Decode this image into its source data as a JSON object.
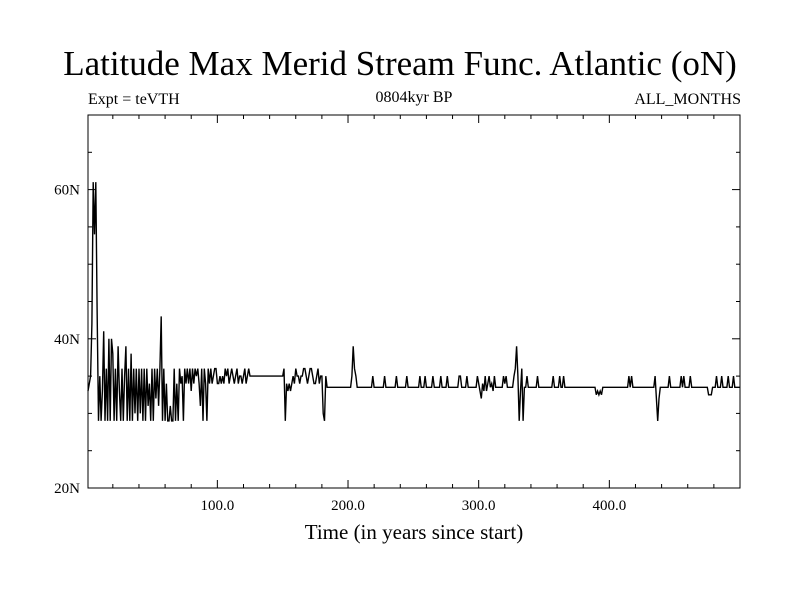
{
  "chart_data": {
    "type": "line",
    "title": "Latitude Max Merid Stream Func. Atlantic (oN)",
    "subtitle_left": "Expt = teVTH",
    "subtitle_center": "0804kyr BP",
    "subtitle_right": "ALL_MONTHS",
    "xlabel": "Time (in years since start)",
    "ylabel": "",
    "xlim": [
      1,
      500
    ],
    "ylim": [
      20,
      70
    ],
    "x_ticks": [
      100,
      200,
      300,
      400
    ],
    "x_tick_labels": [
      "100.0",
      "200.0",
      "300.0",
      "400.0"
    ],
    "y_ticks": [
      20,
      40,
      60
    ],
    "y_tick_labels": [
      "20N",
      "40N",
      "60N"
    ],
    "grid": false,
    "series": [
      {
        "color": "#000000",
        "points": [
          [
            1,
            33
          ],
          [
            3,
            35
          ],
          [
            4,
            42
          ],
          [
            5,
            61
          ],
          [
            6,
            54
          ],
          [
            7,
            61
          ],
          [
            8,
            44
          ],
          [
            9,
            29
          ],
          [
            10,
            35
          ],
          [
            11,
            29
          ],
          [
            12,
            33
          ],
          [
            13,
            41
          ],
          [
            14,
            29
          ],
          [
            15,
            36
          ],
          [
            16,
            29
          ],
          [
            17,
            40
          ],
          [
            18,
            29
          ],
          [
            19,
            40
          ],
          [
            20,
            38
          ],
          [
            21,
            29
          ],
          [
            22,
            36
          ],
          [
            23,
            29
          ],
          [
            24,
            39
          ],
          [
            25,
            33
          ],
          [
            26,
            29
          ],
          [
            27,
            36
          ],
          [
            28,
            29
          ],
          [
            29,
            35
          ],
          [
            30,
            39
          ],
          [
            31,
            29
          ],
          [
            32,
            36
          ],
          [
            33,
            29
          ],
          [
            34,
            38
          ],
          [
            35,
            29
          ],
          [
            36,
            36
          ],
          [
            37,
            30
          ],
          [
            38,
            36
          ],
          [
            39,
            29
          ],
          [
            40,
            36
          ],
          [
            41,
            30
          ],
          [
            42,
            36
          ],
          [
            43,
            29
          ],
          [
            44,
            36
          ],
          [
            45,
            29
          ],
          [
            46,
            36
          ],
          [
            47,
            31
          ],
          [
            48,
            34
          ],
          [
            49,
            29
          ],
          [
            50,
            36
          ],
          [
            51,
            29
          ],
          [
            52,
            36
          ],
          [
            53,
            32
          ],
          [
            54,
            36
          ],
          [
            55,
            31
          ],
          [
            56,
            36
          ],
          [
            57,
            43
          ],
          [
            58,
            29
          ],
          [
            59,
            36
          ],
          [
            60,
            29
          ],
          [
            61,
            34
          ],
          [
            62,
            29
          ],
          [
            63,
            29
          ],
          [
            64,
            31
          ],
          [
            65,
            29
          ],
          [
            66,
            29
          ],
          [
            67,
            36
          ],
          [
            68,
            29
          ],
          [
            69,
            34
          ],
          [
            70,
            29
          ],
          [
            71,
            36
          ],
          [
            72,
            34
          ],
          [
            73,
            35
          ],
          [
            74,
            29
          ],
          [
            75,
            36
          ],
          [
            76,
            34
          ],
          [
            77,
            36
          ],
          [
            78,
            34
          ],
          [
            79,
            36
          ],
          [
            80,
            33
          ],
          [
            81,
            36
          ],
          [
            82,
            34
          ],
          [
            83,
            36
          ],
          [
            84,
            35
          ],
          [
            85,
            36
          ],
          [
            86,
            34
          ],
          [
            87,
            31
          ],
          [
            88,
            36
          ],
          [
            89,
            29
          ],
          [
            90,
            36
          ],
          [
            91,
            34
          ],
          [
            92,
            29
          ],
          [
            93,
            36
          ],
          [
            94,
            34
          ],
          [
            95,
            36
          ],
          [
            96,
            34
          ],
          [
            97,
            35
          ],
          [
            98,
            36
          ],
          [
            99,
            36
          ],
          [
            100,
            34
          ],
          [
            101,
            34
          ],
          [
            102,
            35
          ],
          [
            103,
            34
          ],
          [
            104,
            35
          ],
          [
            105,
            34
          ],
          [
            106,
            36
          ],
          [
            107,
            35
          ],
          [
            108,
            36
          ],
          [
            109,
            34
          ],
          [
            110,
            35
          ],
          [
            111,
            36
          ],
          [
            112,
            35
          ],
          [
            113,
            34
          ],
          [
            114,
            35
          ],
          [
            115,
            36
          ],
          [
            116,
            34
          ],
          [
            117,
            35
          ],
          [
            118,
            35
          ],
          [
            119,
            34
          ],
          [
            120,
            35
          ],
          [
            121,
            36
          ],
          [
            122,
            34
          ],
          [
            123,
            35
          ],
          [
            124,
            36
          ],
          [
            125,
            35
          ],
          [
            126,
            35
          ],
          [
            150,
            35
          ],
          [
            151,
            36
          ],
          [
            152,
            29
          ],
          [
            153,
            34
          ],
          [
            154,
            33
          ],
          [
            155,
            34
          ],
          [
            156,
            33
          ],
          [
            157,
            34
          ],
          [
            158,
            35
          ],
          [
            159,
            34
          ],
          [
            160,
            36
          ],
          [
            161,
            35
          ],
          [
            162,
            35
          ],
          [
            163,
            34
          ],
          [
            164,
            35
          ],
          [
            165,
            35
          ],
          [
            166,
            36
          ],
          [
            167,
            36
          ],
          [
            168,
            35
          ],
          [
            169,
            34
          ],
          [
            170,
            35
          ],
          [
            171,
            36
          ],
          [
            172,
            36
          ],
          [
            173,
            35
          ],
          [
            174,
            34
          ],
          [
            175,
            34
          ],
          [
            176,
            35
          ],
          [
            177,
            36
          ],
          [
            178,
            34
          ],
          [
            179,
            35
          ],
          [
            180,
            35
          ],
          [
            181,
            30
          ],
          [
            182,
            29
          ],
          [
            183,
            35
          ],
          [
            184,
            33.5
          ],
          [
            184,
            33.5
          ],
          [
            202,
            33.5
          ],
          [
            203,
            35
          ],
          [
            204,
            39
          ],
          [
            205,
            36
          ],
          [
            206,
            35
          ],
          [
            207,
            33.5
          ],
          [
            218,
            33.5
          ],
          [
            219,
            35
          ],
          [
            220,
            33.5
          ],
          [
            227,
            33.5
          ],
          [
            228,
            35
          ],
          [
            229,
            33.5
          ],
          [
            236,
            33.5
          ],
          [
            237,
            35
          ],
          [
            238,
            33.5
          ],
          [
            244,
            33.5
          ],
          [
            245,
            35
          ],
          [
            246,
            33.5
          ],
          [
            254,
            33.5
          ],
          [
            255,
            35
          ],
          [
            256,
            33.5
          ],
          [
            258,
            33.5
          ],
          [
            259,
            35
          ],
          [
            260,
            33.5
          ],
          [
            264,
            33.5
          ],
          [
            265,
            35
          ],
          [
            266,
            33.5
          ],
          [
            270,
            33.5
          ],
          [
            271,
            35
          ],
          [
            272,
            33.5
          ],
          [
            275,
            33.5
          ],
          [
            276,
            35
          ],
          [
            277,
            33.5
          ],
          [
            284,
            33.5
          ],
          [
            285,
            35
          ],
          [
            286,
            35
          ],
          [
            287,
            33.5
          ],
          [
            290,
            33.5
          ],
          [
            291,
            35
          ],
          [
            292,
            33.5
          ],
          [
            298,
            33.5
          ],
          [
            299,
            35
          ],
          [
            300,
            34
          ],
          [
            301,
            33
          ],
          [
            302,
            32
          ],
          [
            303,
            34
          ],
          [
            304,
            33
          ],
          [
            305,
            35
          ],
          [
            306,
            33
          ],
          [
            307,
            34
          ],
          [
            308,
            35
          ],
          [
            309,
            33.5
          ],
          [
            310,
            34
          ],
          [
            311,
            33
          ],
          [
            312,
            35
          ],
          [
            313,
            33.5
          ],
          [
            318,
            33.5
          ],
          [
            319,
            35
          ],
          [
            320,
            34
          ],
          [
            321,
            35
          ],
          [
            322,
            33.5
          ],
          [
            326,
            33.5
          ],
          [
            327,
            35
          ],
          [
            328,
            36
          ],
          [
            329,
            39
          ],
          [
            330,
            35
          ],
          [
            331,
            29
          ],
          [
            332,
            33
          ],
          [
            333,
            36
          ],
          [
            334,
            29
          ],
          [
            335,
            33.5
          ],
          [
            336,
            33.5
          ],
          [
            337,
            35
          ],
          [
            338,
            33.5
          ],
          [
            344,
            33.5
          ],
          [
            345,
            35
          ],
          [
            346,
            33.5
          ],
          [
            356,
            33.5
          ],
          [
            357,
            35
          ],
          [
            358,
            33.5
          ],
          [
            361,
            33.5
          ],
          [
            362,
            35
          ],
          [
            363,
            33.5
          ],
          [
            364,
            33.5
          ],
          [
            365,
            35
          ],
          [
            366,
            33.5
          ],
          [
            389,
            33.5
          ],
          [
            390,
            32.5
          ],
          [
            391,
            33
          ],
          [
            392,
            32.5
          ],
          [
            393,
            33
          ],
          [
            394,
            32.5
          ],
          [
            395,
            33.5
          ],
          [
            414,
            33.5
          ],
          [
            415,
            35
          ],
          [
            416,
            33.5
          ],
          [
            417,
            35
          ],
          [
            418,
            33.5
          ],
          [
            434,
            33.5
          ],
          [
            435,
            35
          ],
          [
            436,
            32
          ],
          [
            437,
            29
          ],
          [
            438,
            32
          ],
          [
            439,
            33.5
          ],
          [
            445,
            33.5
          ],
          [
            446,
            35
          ],
          [
            447,
            33.5
          ],
          [
            454,
            33.5
          ],
          [
            455,
            35
          ],
          [
            456,
            33.5
          ],
          [
            457,
            35
          ],
          [
            458,
            33.5
          ],
          [
            461,
            33.5
          ],
          [
            462,
            35
          ],
          [
            463,
            33.5
          ],
          [
            475,
            33.5
          ],
          [
            476,
            32.5
          ],
          [
            477,
            32.5
          ],
          [
            478,
            32.5
          ],
          [
            479,
            33.5
          ],
          [
            481,
            33.5
          ],
          [
            482,
            35
          ],
          [
            483,
            33.5
          ],
          [
            485,
            33.5
          ],
          [
            486,
            35
          ],
          [
            487,
            33.5
          ],
          [
            489,
            33.5
          ],
          [
            490,
            33.5
          ],
          [
            491,
            35
          ],
          [
            492,
            33.5
          ],
          [
            494,
            33.5
          ],
          [
            495,
            35
          ],
          [
            496,
            33.5
          ],
          [
            500,
            33.5
          ]
        ]
      }
    ]
  }
}
